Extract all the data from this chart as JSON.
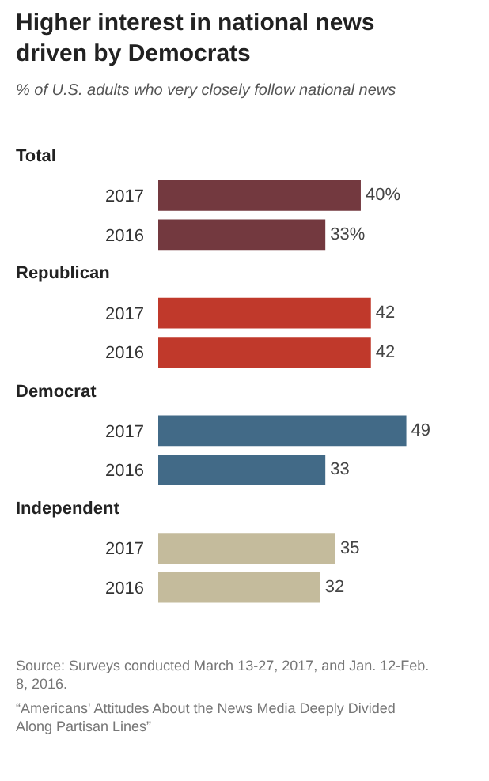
{
  "chart_data": {
    "type": "bar",
    "orientation": "horizontal",
    "title": "Higher interest in national news driven by Democrats",
    "subtitle": "% of U.S. adults who very closely follow national news",
    "categories": [
      null,
      "2017",
      "2016",
      null,
      "2017",
      "2016",
      null,
      "2017",
      "2016",
      null,
      "2017",
      "2016"
    ],
    "values": [
      null,
      40,
      33,
      null,
      42,
      42,
      null,
      49,
      33,
      null,
      35,
      32
    ],
    "value_labels": [
      null,
      "40%",
      "33%",
      null,
      "42",
      "42",
      null,
      "49",
      "33",
      null,
      "35",
      "32"
    ],
    "colors": [
      null,
      "#73393f",
      "#73393f",
      null,
      "#c0392b",
      "#c0392b",
      null,
      "#426a87",
      "#426a87",
      null,
      "#c4bb9c",
      "#c4bb9c"
    ],
    "annotations": [
      "Total",
      "Republican",
      "Democrat",
      "Independent",
      "Source: Surveys conducted March 13-27, 2017, and Jan. 12-Feb. 8, 2016.",
      "“Americans' Attitudes About the News Media Deeply Divided Along Partisan Lines”"
    ],
    "legend": false
  }
}
